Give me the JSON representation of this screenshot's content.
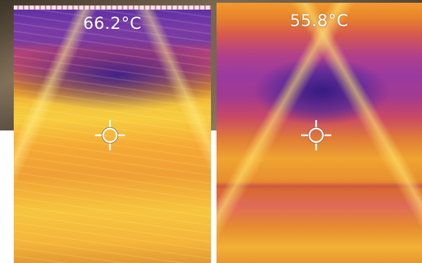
{
  "thermal_images": [
    {
      "temperature_readout": "66.2°C",
      "icon": "crosshair-icon"
    },
    {
      "temperature_readout": "55.8°C",
      "icon": "crosshair-icon"
    }
  ],
  "colors": {
    "palette_hot": "#f7cd3f",
    "palette_warm": "#e08b2a",
    "palette_mid": "#c44a68",
    "palette_cool": "#5a2ea6",
    "readout_text": "#ffffff"
  }
}
